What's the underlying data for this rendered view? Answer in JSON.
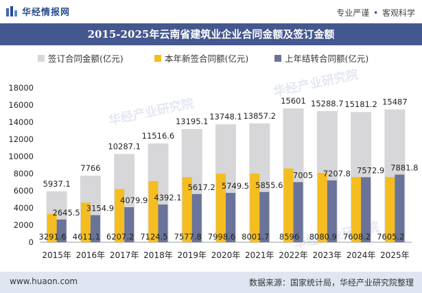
{
  "header": {
    "brand": "华经情报网",
    "slogan_left": "专业严谨",
    "slogan_sep": "•",
    "slogan_right": "客观科学"
  },
  "footer": {
    "url": "www.huaon.com",
    "source": "数据来源：国家统计局，华经产业研究院整理"
  },
  "watermark": "华经产业研究院",
  "colors": {
    "signed_total": "#d7d7d9",
    "new_signed": "#f5bd1f",
    "carried_over": "#6a7399",
    "title_bg": "#44578f"
  },
  "chart_data": {
    "type": "bar",
    "title": "2015-2025年云南省建筑业企业合同金额及签订金额",
    "categories": [
      "2015年",
      "2016年",
      "2017年",
      "2018年",
      "2019年",
      "2020年",
      "2021年",
      "2022年",
      "2023年",
      "2024年",
      "2025年"
    ],
    "ylim": [
      0,
      18000
    ],
    "yticks": [
      0,
      2000,
      4000,
      6000,
      8000,
      10000,
      12000,
      14000,
      16000,
      18000
    ],
    "legend_position": "top",
    "series": [
      {
        "name": "签订合同金额(亿元)",
        "values": [
          5937.1,
          7766,
          10287.1,
          11516.6,
          13195.1,
          13748.1,
          13857.2,
          15601,
          15288.7,
          15181.2,
          15487
        ]
      },
      {
        "name": "本年新签合同额(亿元)",
        "values": [
          3291.6,
          4611.1,
          6207.2,
          7124.5,
          7577.8,
          7998.6,
          8001.7,
          8596,
          8080.9,
          7608.2,
          7605.2
        ]
      },
      {
        "name": "上年结转合同额(亿元)",
        "values": [
          2645.5,
          3154.9,
          4079.9,
          4392.1,
          5617.2,
          5749.5,
          5855.6,
          7005,
          7207.8,
          7572.9,
          7881.8
        ]
      }
    ]
  }
}
